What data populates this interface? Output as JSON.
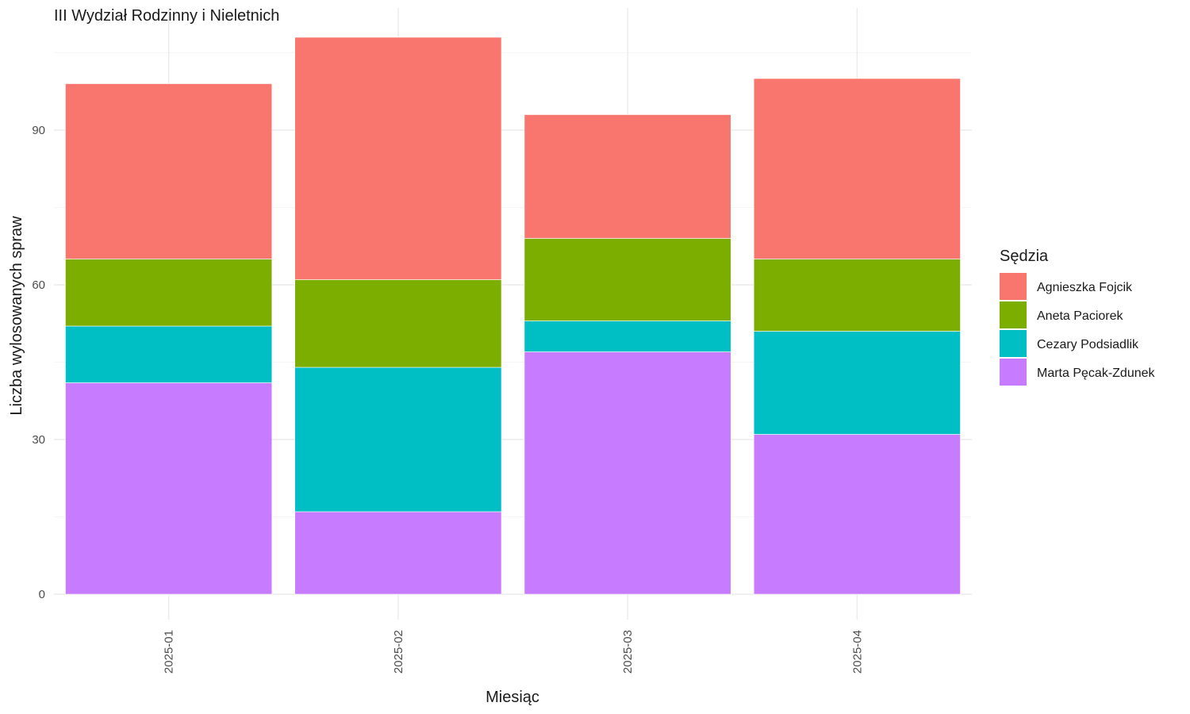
{
  "chart_data": {
    "type": "bar",
    "stacked": true,
    "title": "III Wydział Rodzinny i Nieletnich",
    "xlabel": "Miesiąc",
    "ylabel": "Liczba wylosowanych spraw",
    "categories": [
      "2025-01",
      "2025-02",
      "2025-03",
      "2025-04"
    ],
    "ylim": [
      0,
      113
    ],
    "yticks": [
      0,
      30,
      60,
      90
    ],
    "grid": true,
    "legend": {
      "title": "Sędzia",
      "position": "right"
    },
    "series": [
      {
        "name": "Marta Pęcak-Zdunek",
        "color": "#C77CFF",
        "values": [
          41,
          16,
          47,
          31
        ]
      },
      {
        "name": "Cezary Podsiadlik",
        "color": "#00BFC4",
        "values": [
          11,
          28,
          6,
          20
        ]
      },
      {
        "name": "Aneta Paciorek",
        "color": "#7CAE00",
        "values": [
          13,
          17,
          16,
          14
        ]
      },
      {
        "name": "Agnieszka Fojcik",
        "color": "#F8766D",
        "values": [
          34,
          47,
          24,
          35
        ]
      }
    ],
    "legend_order": [
      "Agnieszka Fojcik",
      "Aneta Paciorek",
      "Cezary Podsiadlik",
      "Marta Pęcak-Zdunek"
    ]
  }
}
